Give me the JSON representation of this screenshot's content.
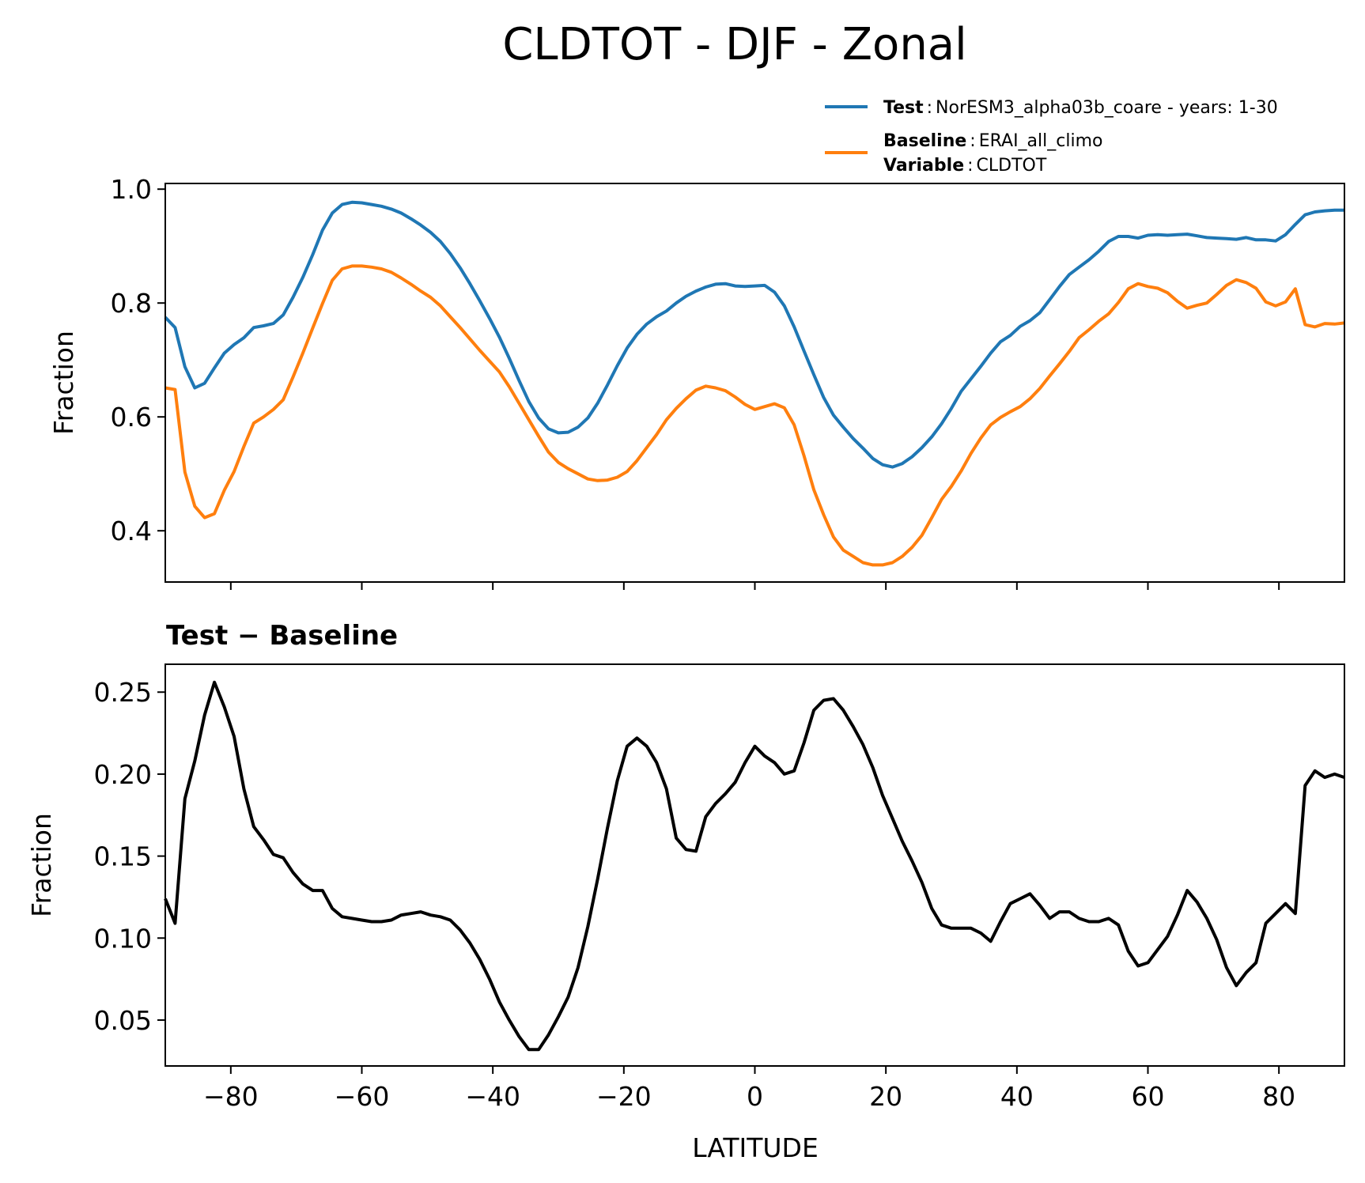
{
  "chart_data": [
    {
      "type": "line",
      "panel": "top",
      "title": "CLDTOT - DJF - Zonal",
      "xlabel": "",
      "ylabel": "Fraction",
      "xlim": [
        -90,
        90
      ],
      "ylim": [
        0.31,
        1.01
      ],
      "yticks": [
        0.4,
        0.6,
        0.8,
        1.0
      ],
      "ytick_labels": [
        "0.4",
        "0.6",
        "0.8",
        "1.0"
      ],
      "xticks": [
        -80,
        -60,
        -40,
        -20,
        0,
        20,
        40,
        60,
        80
      ],
      "legend": {
        "position": "top-right, above plot",
        "entries": [
          {
            "key": "Test",
            "text": "NorESM3_alpha03b_coare - years: 1-30"
          },
          {
            "key": "Baseline",
            "text": "ERAI_all_climo",
            "key2": "Variable",
            "text2": "CLDTOT"
          }
        ]
      },
      "series": [
        {
          "name": "Test",
          "color": "#1f77b4",
          "x": [
            -90,
            -88.5,
            -87,
            -85.5,
            -84,
            -82.5,
            -81,
            -79.5,
            -78,
            -76.5,
            -75,
            -73.5,
            -72,
            -70.5,
            -69,
            -67.5,
            -66,
            -64.5,
            -63,
            -61.5,
            -60,
            -58.5,
            -57,
            -55.5,
            -54,
            -52.5,
            -51,
            -49.5,
            -48,
            -46.5,
            -45,
            -43.5,
            -42,
            -40.5,
            -39,
            -37.5,
            -36,
            -34.5,
            -33,
            -31.5,
            -30,
            -28.5,
            -27,
            -25.5,
            -24,
            -22.5,
            -21,
            -19.5,
            -18,
            -16.5,
            -15,
            -13.5,
            -12,
            -10.5,
            -9,
            -7.5,
            -6,
            -4.5,
            -3,
            -1.5,
            0,
            1.5,
            3,
            4.5,
            6,
            7.5,
            9,
            10.5,
            12,
            13.5,
            15,
            16.5,
            18,
            19.5,
            21,
            22.5,
            24,
            25.5,
            27,
            28.5,
            30,
            31.5,
            33,
            34.5,
            36,
            37.5,
            39,
            40.5,
            42,
            43.5,
            45,
            46.5,
            48,
            49.5,
            51,
            52.5,
            54,
            55.5,
            57,
            58.5,
            60,
            61.5,
            63,
            64.5,
            66,
            67.5,
            69,
            70.5,
            72,
            73.5,
            75,
            76.5,
            78,
            79.5,
            81,
            82.5,
            84,
            85.5,
            87,
            88.5,
            90
          ],
          "values": [
            0.775,
            0.757,
            0.688,
            0.651,
            0.659,
            0.686,
            0.712,
            0.727,
            0.739,
            0.757,
            0.76,
            0.764,
            0.779,
            0.81,
            0.845,
            0.885,
            0.928,
            0.958,
            0.973,
            0.977,
            0.976,
            0.973,
            0.97,
            0.965,
            0.958,
            0.948,
            0.937,
            0.924,
            0.908,
            0.887,
            0.862,
            0.834,
            0.804,
            0.773,
            0.74,
            0.703,
            0.664,
            0.627,
            0.598,
            0.579,
            0.572,
            0.573,
            0.582,
            0.598,
            0.624,
            0.656,
            0.69,
            0.721,
            0.745,
            0.763,
            0.776,
            0.786,
            0.8,
            0.812,
            0.821,
            0.828,
            0.833,
            0.834,
            0.83,
            0.829,
            0.83,
            0.831,
            0.819,
            0.795,
            0.758,
            0.716,
            0.674,
            0.634,
            0.603,
            0.582,
            0.562,
            0.545,
            0.527,
            0.516,
            0.512,
            0.518,
            0.53,
            0.546,
            0.565,
            0.588,
            0.615,
            0.645,
            0.667,
            0.689,
            0.712,
            0.732,
            0.743,
            0.759,
            0.769,
            0.783,
            0.806,
            0.829,
            0.85,
            0.863,
            0.876,
            0.891,
            0.908,
            0.917,
            0.917,
            0.914,
            0.919,
            0.92,
            0.919,
            0.92,
            0.921,
            0.918,
            0.915,
            0.914,
            0.913,
            0.912,
            0.915,
            0.911,
            0.911,
            0.909,
            0.92,
            0.938,
            0.955,
            0.96,
            0.962,
            0.963,
            0.963
          ]
        },
        {
          "name": "Baseline",
          "color": "#ff7f0e",
          "x": [
            -90,
            -88.5,
            -87,
            -85.5,
            -84,
            -82.5,
            -81,
            -79.5,
            -78,
            -76.5,
            -75,
            -73.5,
            -72,
            -70.5,
            -69,
            -67.5,
            -66,
            -64.5,
            -63,
            -61.5,
            -60,
            -58.5,
            -57,
            -55.5,
            -54,
            -52.5,
            -51,
            -49.5,
            -48,
            -46.5,
            -45,
            -43.5,
            -42,
            -40.5,
            -39,
            -37.5,
            -36,
            -34.5,
            -33,
            -31.5,
            -30,
            -28.5,
            -27,
            -25.5,
            -24,
            -22.5,
            -21,
            -19.5,
            -18,
            -16.5,
            -15,
            -13.5,
            -12,
            -10.5,
            -9,
            -7.5,
            -6,
            -4.5,
            -3,
            -1.5,
            0,
            1.5,
            3,
            4.5,
            6,
            7.5,
            9,
            10.5,
            12,
            13.5,
            15,
            16.5,
            18,
            19.5,
            21,
            22.5,
            24,
            25.5,
            27,
            28.5,
            30,
            31.5,
            33,
            34.5,
            36,
            37.5,
            39,
            40.5,
            42,
            43.5,
            45,
            46.5,
            48,
            49.5,
            51,
            52.5,
            54,
            55.5,
            57,
            58.5,
            60,
            61.5,
            63,
            64.5,
            66,
            67.5,
            69,
            70.5,
            72,
            73.5,
            75,
            76.5,
            78,
            79.5,
            81,
            82.5,
            84,
            85.5,
            87,
            88.5,
            90
          ],
          "values": [
            0.651,
            0.648,
            0.503,
            0.443,
            0.423,
            0.43,
            0.471,
            0.504,
            0.548,
            0.589,
            0.6,
            0.613,
            0.63,
            0.67,
            0.712,
            0.756,
            0.799,
            0.84,
            0.86,
            0.865,
            0.865,
            0.863,
            0.86,
            0.854,
            0.844,
            0.833,
            0.821,
            0.81,
            0.795,
            0.776,
            0.757,
            0.737,
            0.717,
            0.698,
            0.679,
            0.653,
            0.624,
            0.595,
            0.566,
            0.538,
            0.52,
            0.509,
            0.5,
            0.491,
            0.488,
            0.489,
            0.494,
            0.504,
            0.523,
            0.546,
            0.569,
            0.595,
            0.615,
            0.632,
            0.647,
            0.654,
            0.651,
            0.646,
            0.635,
            0.622,
            0.613,
            0.618,
            0.623,
            0.616,
            0.586,
            0.532,
            0.472,
            0.428,
            0.389,
            0.366,
            0.355,
            0.344,
            0.34,
            0.34,
            0.344,
            0.355,
            0.371,
            0.392,
            0.423,
            0.455,
            0.478,
            0.505,
            0.536,
            0.563,
            0.586,
            0.599,
            0.609,
            0.618,
            0.632,
            0.65,
            0.672,
            0.693,
            0.715,
            0.739,
            0.753,
            0.768,
            0.781,
            0.801,
            0.825,
            0.834,
            0.829,
            0.826,
            0.818,
            0.803,
            0.791,
            0.796,
            0.8,
            0.815,
            0.831,
            0.841,
            0.836,
            0.826,
            0.802,
            0.795,
            0.802,
            0.825,
            0.762,
            0.758,
            0.764,
            0.763,
            0.765
          ]
        }
      ]
    },
    {
      "type": "line",
      "panel": "bottom",
      "title": "Test − Baseline",
      "xlabel": "LATITUDE",
      "ylabel": "Fraction",
      "xlim": [
        -90,
        90
      ],
      "ylim": [
        0.022,
        0.267
      ],
      "yticks": [
        0.05,
        0.1,
        0.15,
        0.2,
        0.25
      ],
      "ytick_labels": [
        "0.05",
        "0.10",
        "0.15",
        "0.20",
        "0.25"
      ],
      "xticks": [
        -80,
        -60,
        -40,
        -20,
        0,
        20,
        40,
        60,
        80
      ],
      "xtick_labels": [
        "−80",
        "−60",
        "−40",
        "−20",
        "0",
        "20",
        "40",
        "60",
        "80"
      ],
      "series": [
        {
          "name": "Test − Baseline",
          "color": "#000000",
          "x": [
            -90,
            -88.5,
            -87,
            -85.5,
            -84,
            -82.5,
            -81,
            -79.5,
            -78,
            -76.5,
            -75,
            -73.5,
            -72,
            -70.5,
            -69,
            -67.5,
            -66,
            -64.5,
            -63,
            -61.5,
            -60,
            -58.5,
            -57,
            -55.5,
            -54,
            -52.5,
            -51,
            -49.5,
            -48,
            -46.5,
            -45,
            -43.5,
            -42,
            -40.5,
            -39,
            -37.5,
            -36,
            -34.5,
            -33,
            -31.5,
            -30,
            -28.5,
            -27,
            -25.5,
            -24,
            -22.5,
            -21,
            -19.5,
            -18,
            -16.5,
            -15,
            -13.5,
            -12,
            -10.5,
            -9,
            -7.5,
            -6,
            -4.5,
            -3,
            -1.5,
            0,
            1.5,
            3,
            4.5,
            6,
            7.5,
            9,
            10.5,
            12,
            13.5,
            15,
            16.5,
            18,
            19.5,
            21,
            22.5,
            24,
            25.5,
            27,
            28.5,
            30,
            31.5,
            33,
            34.5,
            36,
            37.5,
            39,
            40.5,
            42,
            43.5,
            45,
            46.5,
            48,
            49.5,
            51,
            52.5,
            54,
            55.5,
            57,
            58.5,
            60,
            61.5,
            63,
            64.5,
            66,
            67.5,
            69,
            70.5,
            72,
            73.5,
            75,
            76.5,
            78,
            79.5,
            81,
            82.5,
            84,
            85.5,
            87,
            88.5,
            90
          ],
          "values": [
            0.124,
            0.109,
            0.185,
            0.208,
            0.236,
            0.256,
            0.241,
            0.223,
            0.191,
            0.168,
            0.16,
            0.151,
            0.149,
            0.14,
            0.133,
            0.129,
            0.129,
            0.118,
            0.113,
            0.112,
            0.111,
            0.11,
            0.11,
            0.111,
            0.114,
            0.115,
            0.116,
            0.114,
            0.113,
            0.111,
            0.105,
            0.097,
            0.087,
            0.075,
            0.061,
            0.05,
            0.04,
            0.032,
            0.032,
            0.041,
            0.052,
            0.064,
            0.082,
            0.107,
            0.136,
            0.167,
            0.196,
            0.217,
            0.222,
            0.217,
            0.207,
            0.191,
            0.161,
            0.154,
            0.153,
            0.174,
            0.182,
            0.188,
            0.195,
            0.207,
            0.217,
            0.211,
            0.207,
            0.2,
            0.202,
            0.219,
            0.239,
            0.245,
            0.246,
            0.239,
            0.229,
            0.218,
            0.204,
            0.187,
            0.173,
            0.159,
            0.147,
            0.134,
            0.118,
            0.108,
            0.106,
            0.106,
            0.106,
            0.103,
            0.098,
            0.11,
            0.121,
            0.124,
            0.127,
            0.12,
            0.112,
            0.116,
            0.116,
            0.112,
            0.11,
            0.11,
            0.112,
            0.108,
            0.092,
            0.083,
            0.085,
            0.093,
            0.101,
            0.114,
            0.129,
            0.122,
            0.112,
            0.099,
            0.082,
            0.071,
            0.079,
            0.085,
            0.109,
            0.115,
            0.121,
            0.115,
            0.193,
            0.202,
            0.198,
            0.2,
            0.198
          ]
        }
      ]
    }
  ]
}
